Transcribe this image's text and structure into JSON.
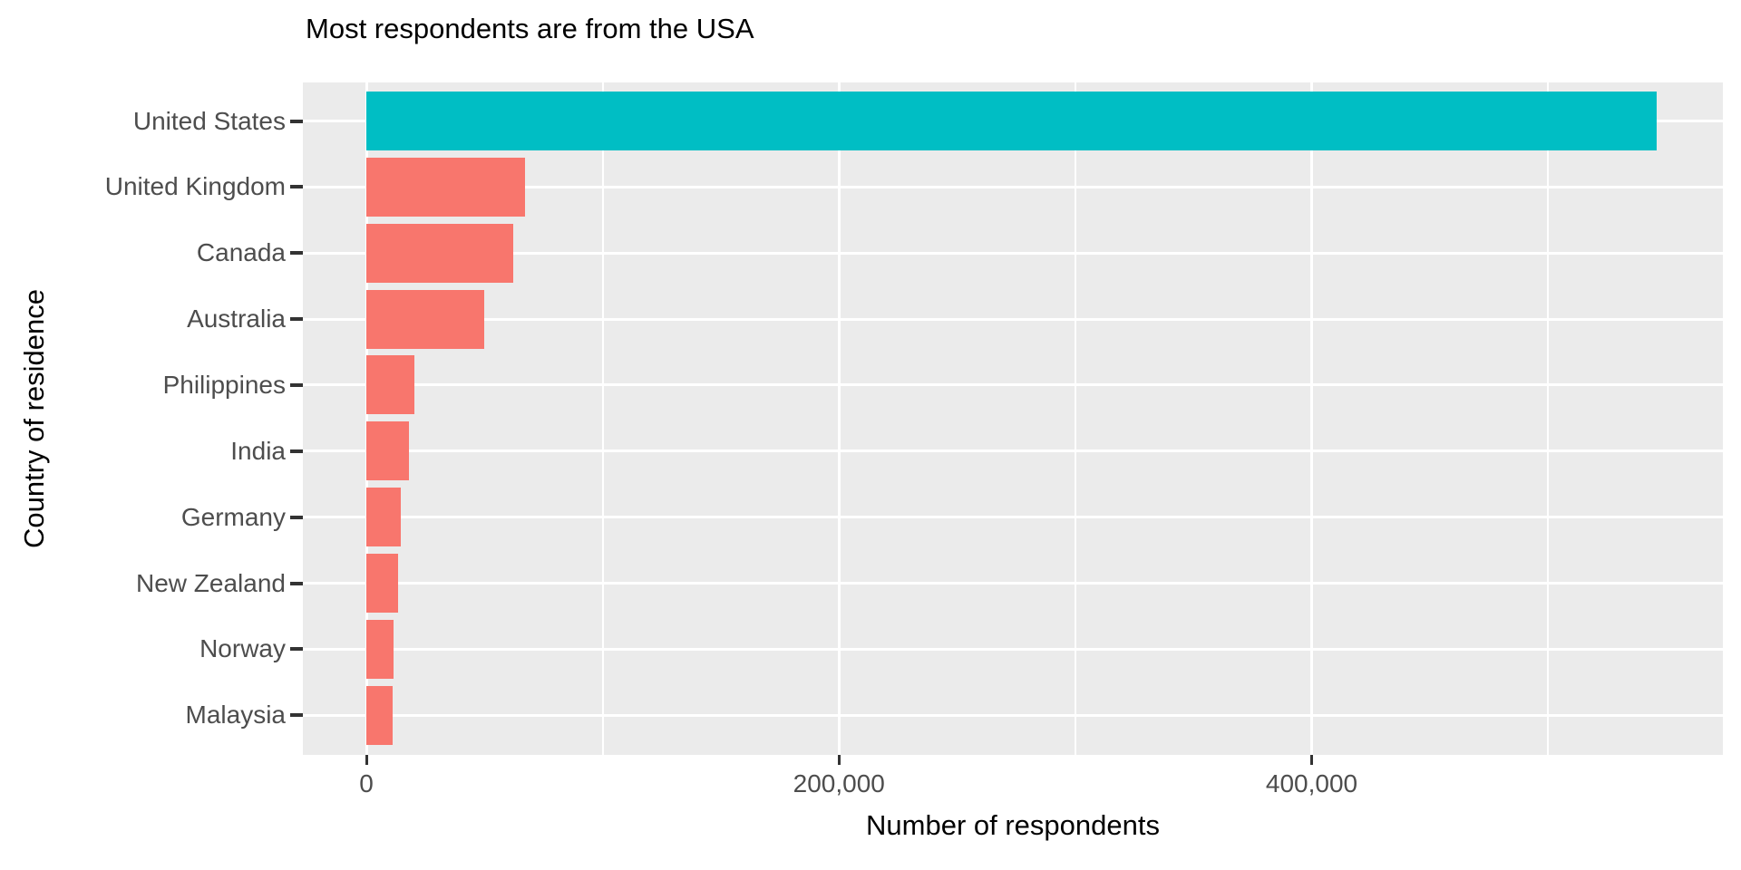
{
  "chart_data": {
    "type": "bar",
    "orientation": "horizontal",
    "title": "Most respondents are from the USA",
    "xlabel": "Number of respondents",
    "ylabel": "Country of residence",
    "categories": [
      "United States",
      "United Kingdom",
      "Canada",
      "Australia",
      "Philippines",
      "India",
      "Germany",
      "New Zealand",
      "Norway",
      "Malaysia"
    ],
    "values": [
      546000,
      67000,
      62000,
      50000,
      20300,
      18000,
      14500,
      13400,
      11500,
      11300
    ],
    "highlight_category": "United States",
    "xlim": [
      0,
      574000
    ],
    "x_major_ticks": [
      0,
      200000,
      400000
    ],
    "x_tick_labels": [
      "0",
      "200,000",
      "400,000"
    ],
    "x_minor_ticks": [
      100000,
      300000,
      500000
    ],
    "grid": true,
    "legend": false,
    "colors": {
      "highlight_bar": "#00BEC4",
      "default_bar": "#F8766D",
      "panel_background": "#EBEBEB",
      "gridline": "#FFFFFF",
      "tick_mark": "#333333",
      "tick_label_text": "#4D4D4D",
      "title_text": "#000000"
    }
  }
}
